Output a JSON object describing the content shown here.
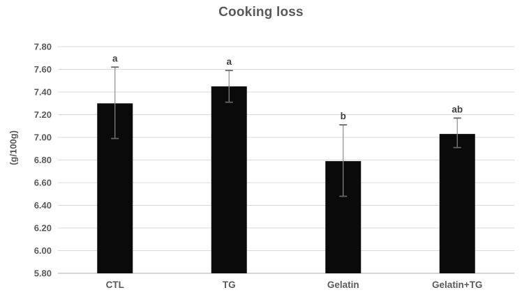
{
  "chart_data": {
    "type": "bar",
    "title": "Cooking loss",
    "ylabel": "(g/100g)",
    "xlabel": "",
    "categories": [
      "CTL",
      "TG",
      "Gelatin",
      "Gelatin+TG"
    ],
    "values": [
      7.3,
      7.45,
      6.79,
      7.03
    ],
    "error_top": [
      7.62,
      7.59,
      7.11,
      7.17
    ],
    "error_bottom": [
      6.99,
      7.31,
      6.48,
      6.91
    ],
    "sig_letters": [
      "a",
      "a",
      "b",
      "ab"
    ],
    "ylim": [
      5.8,
      7.8
    ],
    "ytick_step": 0.2,
    "yticks": [
      "7.80",
      "7.60",
      "7.40",
      "7.20",
      "7.00",
      "6.80",
      "6.60",
      "6.40",
      "6.20",
      "6.00",
      "5.80"
    ],
    "grid": true,
    "legend": "none",
    "colors": {
      "bar": "#0a0a0a",
      "error_line": "#8c8c8c",
      "error_cap": "#666666",
      "gridline": "#d9d9d9",
      "axis_line": "#c6c6c6",
      "text": "#595959",
      "sig_letter": "#3f3f3f",
      "title": "#595959"
    }
  }
}
